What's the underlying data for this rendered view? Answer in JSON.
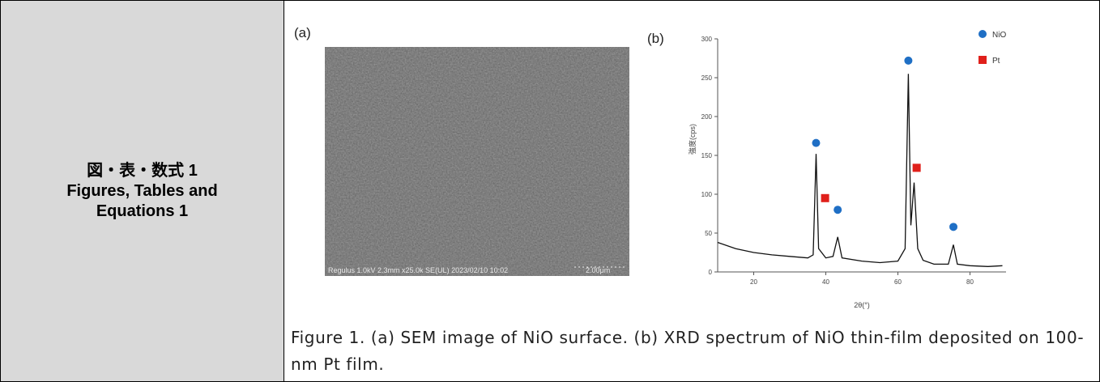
{
  "table": {
    "label": [
      "図・表・数式 1",
      "Figures, Tables and",
      "Equations 1"
    ]
  },
  "figure": {
    "panel_a": "(a)",
    "sem_info": "Regulus 1.0kV 2.3mm x25.0k SE(UL) 2023/02/10 10:02",
    "scale_bar": "2.00μm",
    "panel_b": "(b)",
    "caption": "Figure 1. (a) SEM image of NiO surface. (b) XRD spectrum of NiO thin-film deposited on 100-nm Pt film."
  },
  "chart_data": {
    "type": "line",
    "xlabel": "2θ(°)",
    "ylabel": "強度(cps)",
    "xlim": [
      10,
      90
    ],
    "ylim": [
      0,
      300
    ],
    "xticks": [
      20,
      40,
      60,
      80
    ],
    "yticks": [
      0,
      50,
      100,
      150,
      200,
      250,
      300
    ],
    "spectrum": {
      "color": "#111111",
      "x": [
        10,
        15,
        20,
        25,
        30,
        35,
        36.5,
        37.3,
        38,
        40,
        42,
        43.3,
        44.5,
        50,
        55,
        60,
        62,
        62.9,
        63.6,
        64.5,
        65.5,
        67,
        70,
        74,
        75.4,
        76.5,
        80,
        85,
        89
      ],
      "y": [
        38,
        30,
        25,
        22,
        20,
        18,
        22,
        152,
        30,
        18,
        20,
        45,
        18,
        14,
        12,
        14,
        30,
        255,
        60,
        115,
        30,
        15,
        10,
        10,
        35,
        10,
        8,
        7,
        8
      ]
    },
    "series": [
      {
        "name": "NiO",
        "color": "#1f6fc5",
        "shape": "circle",
        "x": [
          37.3,
          43.3,
          62.9,
          75.4
        ],
        "y": [
          166,
          80,
          272,
          58
        ]
      },
      {
        "name": "Pt",
        "color": "#e0201b",
        "shape": "square",
        "x": [
          39.8,
          65.2
        ],
        "y": [
          95,
          134
        ]
      }
    ]
  }
}
